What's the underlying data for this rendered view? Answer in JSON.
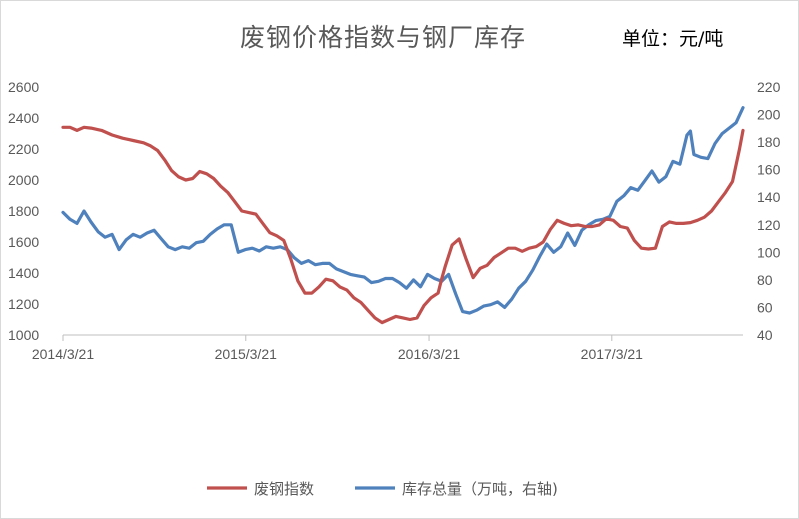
{
  "header": {
    "title": "废钢价格指数与钢厂库存",
    "unit": "单位：元/吨"
  },
  "colors": {
    "red_series": "#C0504D",
    "blue_series": "#4F81BD"
  },
  "chart_data": {
    "type": "line",
    "title": "废钢价格指数与钢厂库存",
    "unit": "单位：元/吨",
    "x_tick_labels": [
      "2014/3/21",
      "2015/3/21",
      "2016/3/21",
      "2017/3/21"
    ],
    "x_ticks": [
      "2014-03-21",
      "2015-03-21",
      "2016-03-21",
      "2017-03-21"
    ],
    "x_range": [
      "2014-03-21",
      "2017-12-08"
    ],
    "y_left": {
      "ticks": [
        1000,
        1200,
        1400,
        1600,
        1800,
        2000,
        2200,
        2400,
        2600
      ],
      "ylim": [
        1000,
        2600
      ]
    },
    "y_right": {
      "ticks": [
        40,
        60,
        80,
        100,
        120,
        140,
        160,
        180,
        200,
        220
      ],
      "ylim": [
        40,
        220
      ]
    },
    "grid": false,
    "legend_position": "bottom",
    "series": [
      {
        "name": "废钢指数",
        "axis": "left",
        "color": "#C0504D",
        "x": [
          "2014-03-21",
          "2014-04-04",
          "2014-04-18",
          "2014-05-02",
          "2014-05-16",
          "2014-06-06",
          "2014-06-27",
          "2014-07-18",
          "2014-08-08",
          "2014-08-29",
          "2014-09-12",
          "2014-09-26",
          "2014-10-10",
          "2014-10-24",
          "2014-11-07",
          "2014-11-21",
          "2014-12-05",
          "2014-12-19",
          "2015-01-02",
          "2015-01-16",
          "2015-01-30",
          "2015-02-13",
          "2015-02-27",
          "2015-03-13",
          "2015-03-27",
          "2015-04-10",
          "2015-04-24",
          "2015-05-08",
          "2015-05-22",
          "2015-06-05",
          "2015-06-19",
          "2015-07-03",
          "2015-07-17",
          "2015-07-31",
          "2015-08-14",
          "2015-08-28",
          "2015-09-11",
          "2015-09-25",
          "2015-10-09",
          "2015-10-23",
          "2015-11-06",
          "2015-11-20",
          "2015-12-04",
          "2015-12-18",
          "2016-01-01",
          "2016-01-15",
          "2016-01-29",
          "2016-02-12",
          "2016-02-26",
          "2016-03-11",
          "2016-03-25",
          "2016-04-08",
          "2016-04-15",
          "2016-04-22",
          "2016-05-06",
          "2016-05-20",
          "2016-06-03",
          "2016-06-17",
          "2016-07-01",
          "2016-07-15",
          "2016-07-29",
          "2016-08-12",
          "2016-08-26",
          "2016-09-09",
          "2016-09-23",
          "2016-10-07",
          "2016-10-21",
          "2016-11-04",
          "2016-11-18",
          "2016-12-02",
          "2016-12-16",
          "2016-12-30",
          "2017-01-13",
          "2017-01-27",
          "2017-02-10",
          "2017-02-24",
          "2017-03-10",
          "2017-03-24",
          "2017-04-07",
          "2017-04-21",
          "2017-05-05",
          "2017-05-19",
          "2017-06-02",
          "2017-06-16",
          "2017-06-30",
          "2017-07-14",
          "2017-07-28",
          "2017-08-11",
          "2017-08-25",
          "2017-09-08",
          "2017-09-22",
          "2017-10-06",
          "2017-10-20",
          "2017-11-03",
          "2017-11-17",
          "2017-12-01",
          "2017-12-08"
        ],
        "values": [
          2340,
          2340,
          2320,
          2340,
          2335,
          2320,
          2290,
          2270,
          2255,
          2240,
          2220,
          2190,
          2130,
          2060,
          2020,
          2000,
          2010,
          2055,
          2040,
          2010,
          1960,
          1920,
          1860,
          1800,
          1790,
          1780,
          1720,
          1660,
          1640,
          1610,
          1490,
          1350,
          1270,
          1270,
          1310,
          1360,
          1350,
          1310,
          1290,
          1240,
          1210,
          1160,
          1110,
          1080,
          1100,
          1120,
          1110,
          1100,
          1110,
          1190,
          1240,
          1270,
          1360,
          1440,
          1580,
          1620,
          1490,
          1370,
          1430,
          1450,
          1500,
          1530,
          1560,
          1560,
          1540,
          1560,
          1570,
          1600,
          1680,
          1740,
          1720,
          1705,
          1710,
          1700,
          1700,
          1710,
          1750,
          1740,
          1700,
          1690,
          1610,
          1560,
          1555,
          1560,
          1700,
          1730,
          1720,
          1720,
          1725,
          1740,
          1760,
          1800,
          1860,
          1920,
          1990,
          2200,
          2320
        ]
      },
      {
        "name": "库存总量（万吨，右轴)",
        "axis": "right",
        "color": "#4F81BD",
        "x": [
          "2014-03-21",
          "2014-04-04",
          "2014-04-18",
          "2014-05-02",
          "2014-05-16",
          "2014-05-30",
          "2014-06-13",
          "2014-06-27",
          "2014-07-11",
          "2014-07-25",
          "2014-08-08",
          "2014-08-22",
          "2014-09-05",
          "2014-09-19",
          "2014-10-03",
          "2014-10-17",
          "2014-10-31",
          "2014-11-14",
          "2014-11-28",
          "2014-12-12",
          "2014-12-26",
          "2015-01-09",
          "2015-01-23",
          "2015-02-06",
          "2015-02-20",
          "2015-03-06",
          "2015-03-20",
          "2015-04-03",
          "2015-04-17",
          "2015-05-01",
          "2015-05-15",
          "2015-05-29",
          "2015-06-12",
          "2015-06-26",
          "2015-07-10",
          "2015-07-24",
          "2015-08-07",
          "2015-08-21",
          "2015-09-04",
          "2015-09-18",
          "2015-10-02",
          "2015-10-16",
          "2015-10-30",
          "2015-11-13",
          "2015-11-27",
          "2015-12-11",
          "2015-12-25",
          "2016-01-08",
          "2016-01-22",
          "2016-02-05",
          "2016-02-19",
          "2016-03-04",
          "2016-03-18",
          "2016-04-01",
          "2016-04-15",
          "2016-04-29",
          "2016-05-13",
          "2016-05-27",
          "2016-06-10",
          "2016-06-24",
          "2016-07-08",
          "2016-07-22",
          "2016-08-05",
          "2016-08-19",
          "2016-09-02",
          "2016-09-16",
          "2016-09-30",
          "2016-10-14",
          "2016-10-28",
          "2016-11-11",
          "2016-11-25",
          "2016-12-09",
          "2016-12-23",
          "2017-01-06",
          "2017-01-20",
          "2017-02-03",
          "2017-02-17",
          "2017-03-03",
          "2017-03-17",
          "2017-03-31",
          "2017-04-14",
          "2017-04-28",
          "2017-05-12",
          "2017-05-26",
          "2017-06-09",
          "2017-06-23",
          "2017-07-07",
          "2017-07-21",
          "2017-08-04",
          "2017-08-18",
          "2017-08-25",
          "2017-09-01",
          "2017-09-15",
          "2017-09-29",
          "2017-10-13",
          "2017-10-27",
          "2017-11-10",
          "2017-11-24",
          "2017-12-08"
        ],
        "values": [
          129,
          124,
          121,
          130,
          122,
          115,
          111,
          113,
          102,
          109,
          113,
          111,
          114,
          116,
          110,
          104,
          102,
          104,
          103,
          107,
          108,
          113,
          117,
          120,
          120,
          100,
          102,
          103,
          101,
          104,
          103,
          104,
          102,
          96,
          92,
          94,
          91,
          92,
          92,
          88,
          86,
          84,
          83,
          82,
          78,
          79,
          81,
          81,
          78,
          74,
          80,
          75,
          84,
          81,
          79,
          84,
          70,
          57,
          56,
          58,
          61,
          62,
          64,
          60,
          66,
          74,
          79,
          87,
          97,
          106,
          100,
          104,
          114,
          105,
          116,
          120,
          123,
          124,
          126,
          137,
          141,
          147,
          145,
          152,
          159,
          151,
          155,
          166,
          164,
          185,
          188,
          171,
          169,
          168,
          179,
          186,
          190,
          194,
          205
        ]
      }
    ]
  },
  "legend": [
    {
      "label": "废钢指数",
      "color": "#C0504D"
    },
    {
      "label": "库存总量（万吨，右轴)",
      "color": "#4F81BD"
    }
  ]
}
